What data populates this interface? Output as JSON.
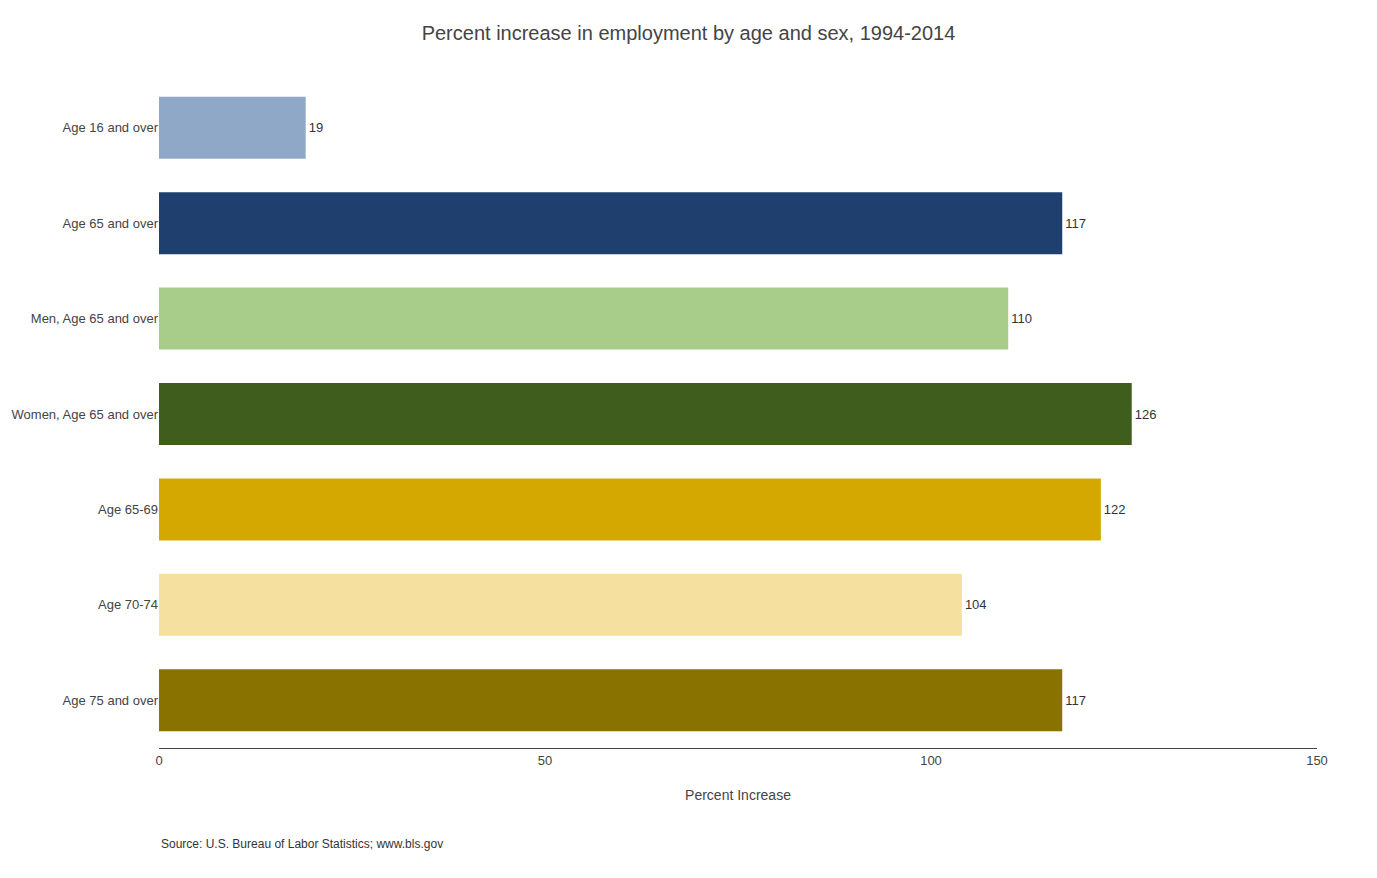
{
  "chart_data": {
    "type": "bar",
    "orientation": "horizontal",
    "title": "Percent increase in employment by age and sex, 1994-2014",
    "xlabel": "Percent Increase",
    "categories": [
      "Age 75 and over",
      "Age 70-74",
      "Age 65-69",
      "Women, Age 65 and over",
      "Men, Age 65 and over",
      "Age 65 and over",
      "Age 16 and over"
    ],
    "values": [
      117,
      104,
      122,
      126,
      110,
      117,
      19
    ],
    "colors": [
      "#8a7200",
      "#f5e0a0",
      "#d4a800",
      "#3f5e1e",
      "#a8cc8a",
      "#1f3f6e",
      "#8fa8c8"
    ],
    "xlim": [
      0,
      150
    ],
    "xticks": [
      0,
      50,
      100,
      150
    ],
    "grid": false,
    "data_labels": true,
    "annotations": [
      "Source: U.S. Bureau of Labor Statistics; www.bls.gov"
    ]
  }
}
